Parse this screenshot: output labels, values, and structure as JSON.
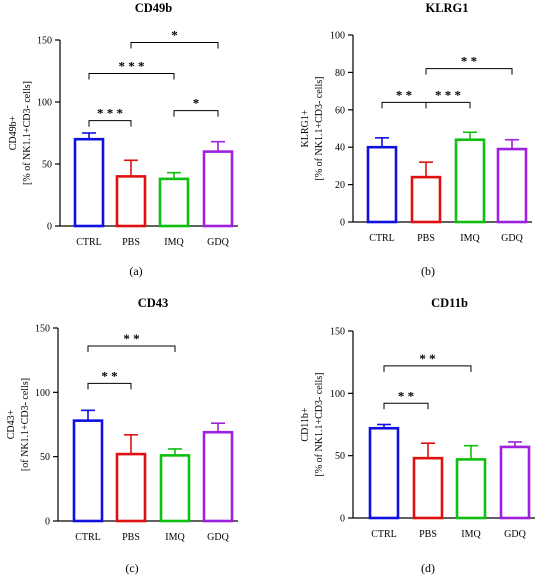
{
  "chart_data": [
    {
      "type": "bar",
      "title": "CD49b",
      "panel_label": "(a)",
      "ylabel_line1": "CD49b+",
      "ylabel_line2": "[% of NK1.1+CD3- cells]",
      "categories": [
        "CTRL",
        "PBS",
        "IMQ",
        "GDQ"
      ],
      "values": [
        70,
        40,
        38,
        60
      ],
      "errors": [
        5,
        13,
        5,
        8
      ],
      "colors": [
        "#1010e0",
        "#e01010",
        "#10c010",
        "#a020e0"
      ],
      "ylim": [
        0,
        150
      ],
      "yticks": [
        0,
        50,
        100,
        150
      ],
      "significance": [
        {
          "from": 0,
          "to": 1,
          "label": "* * *",
          "y": 85
        },
        {
          "from": 0,
          "to": 2,
          "label": "* * *",
          "y": 123
        },
        {
          "from": 1,
          "to": 3,
          "label": "*",
          "y": 148
        },
        {
          "from": 2,
          "to": 3,
          "label": "*",
          "y": 93
        }
      ]
    },
    {
      "type": "bar",
      "title": "KLRG1",
      "panel_label": "(b)",
      "ylabel_line1": "KLRG1+",
      "ylabel_line2": "[% of NK1.1+CD3- cells]",
      "categories": [
        "CTRL",
        "PBS",
        "IMQ",
        "GDQ"
      ],
      "values": [
        40,
        24,
        44,
        39
      ],
      "errors": [
        5,
        8,
        4,
        5
      ],
      "colors": [
        "#1010e0",
        "#e01010",
        "#10c010",
        "#a020e0"
      ],
      "ylim": [
        0,
        100
      ],
      "yticks": [
        0,
        20,
        40,
        60,
        80,
        100
      ],
      "significance": [
        {
          "from": 0,
          "to": 1,
          "label": "* *",
          "y": 64
        },
        {
          "from": 1,
          "to": 2,
          "label": "* * *",
          "y": 64
        },
        {
          "from": 1,
          "to": 3,
          "label": "* *",
          "y": 82
        }
      ]
    },
    {
      "type": "bar",
      "title": "CD43",
      "panel_label": "(c)",
      "ylabel_line1": "CD43+",
      "ylabel_line2": "[of NK1.1+CD3- cells]",
      "categories": [
        "CTRL",
        "PBS",
        "IMQ",
        "GDQ"
      ],
      "values": [
        78,
        52,
        51,
        69
      ],
      "errors": [
        8,
        15,
        5,
        7
      ],
      "colors": [
        "#1010e0",
        "#e01010",
        "#10c010",
        "#a020e0"
      ],
      "ylim": [
        0,
        150
      ],
      "yticks": [
        0,
        50,
        100,
        150
      ],
      "significance": [
        {
          "from": 0,
          "to": 1,
          "label": "* *",
          "y": 107
        },
        {
          "from": 0,
          "to": 2,
          "label": "* *",
          "y": 136
        }
      ]
    },
    {
      "type": "bar",
      "title": "CD11b",
      "panel_label": "(d)",
      "ylabel_line1": "CD11b+",
      "ylabel_line2": "[% of NK1.1+CD3- cells]",
      "categories": [
        "CTRL",
        "PBS",
        "IMQ",
        "GDQ"
      ],
      "values": [
        72,
        48,
        47,
        57
      ],
      "errors": [
        3,
        12,
        11,
        4
      ],
      "colors": [
        "#1010e0",
        "#e01010",
        "#10c010",
        "#a020e0"
      ],
      "ylim": [
        0,
        150
      ],
      "yticks": [
        0,
        50,
        100,
        150
      ],
      "significance": [
        {
          "from": 0,
          "to": 1,
          "label": "* *",
          "y": 92
        },
        {
          "from": 0,
          "to": 2,
          "label": "* *",
          "y": 122
        }
      ]
    }
  ]
}
